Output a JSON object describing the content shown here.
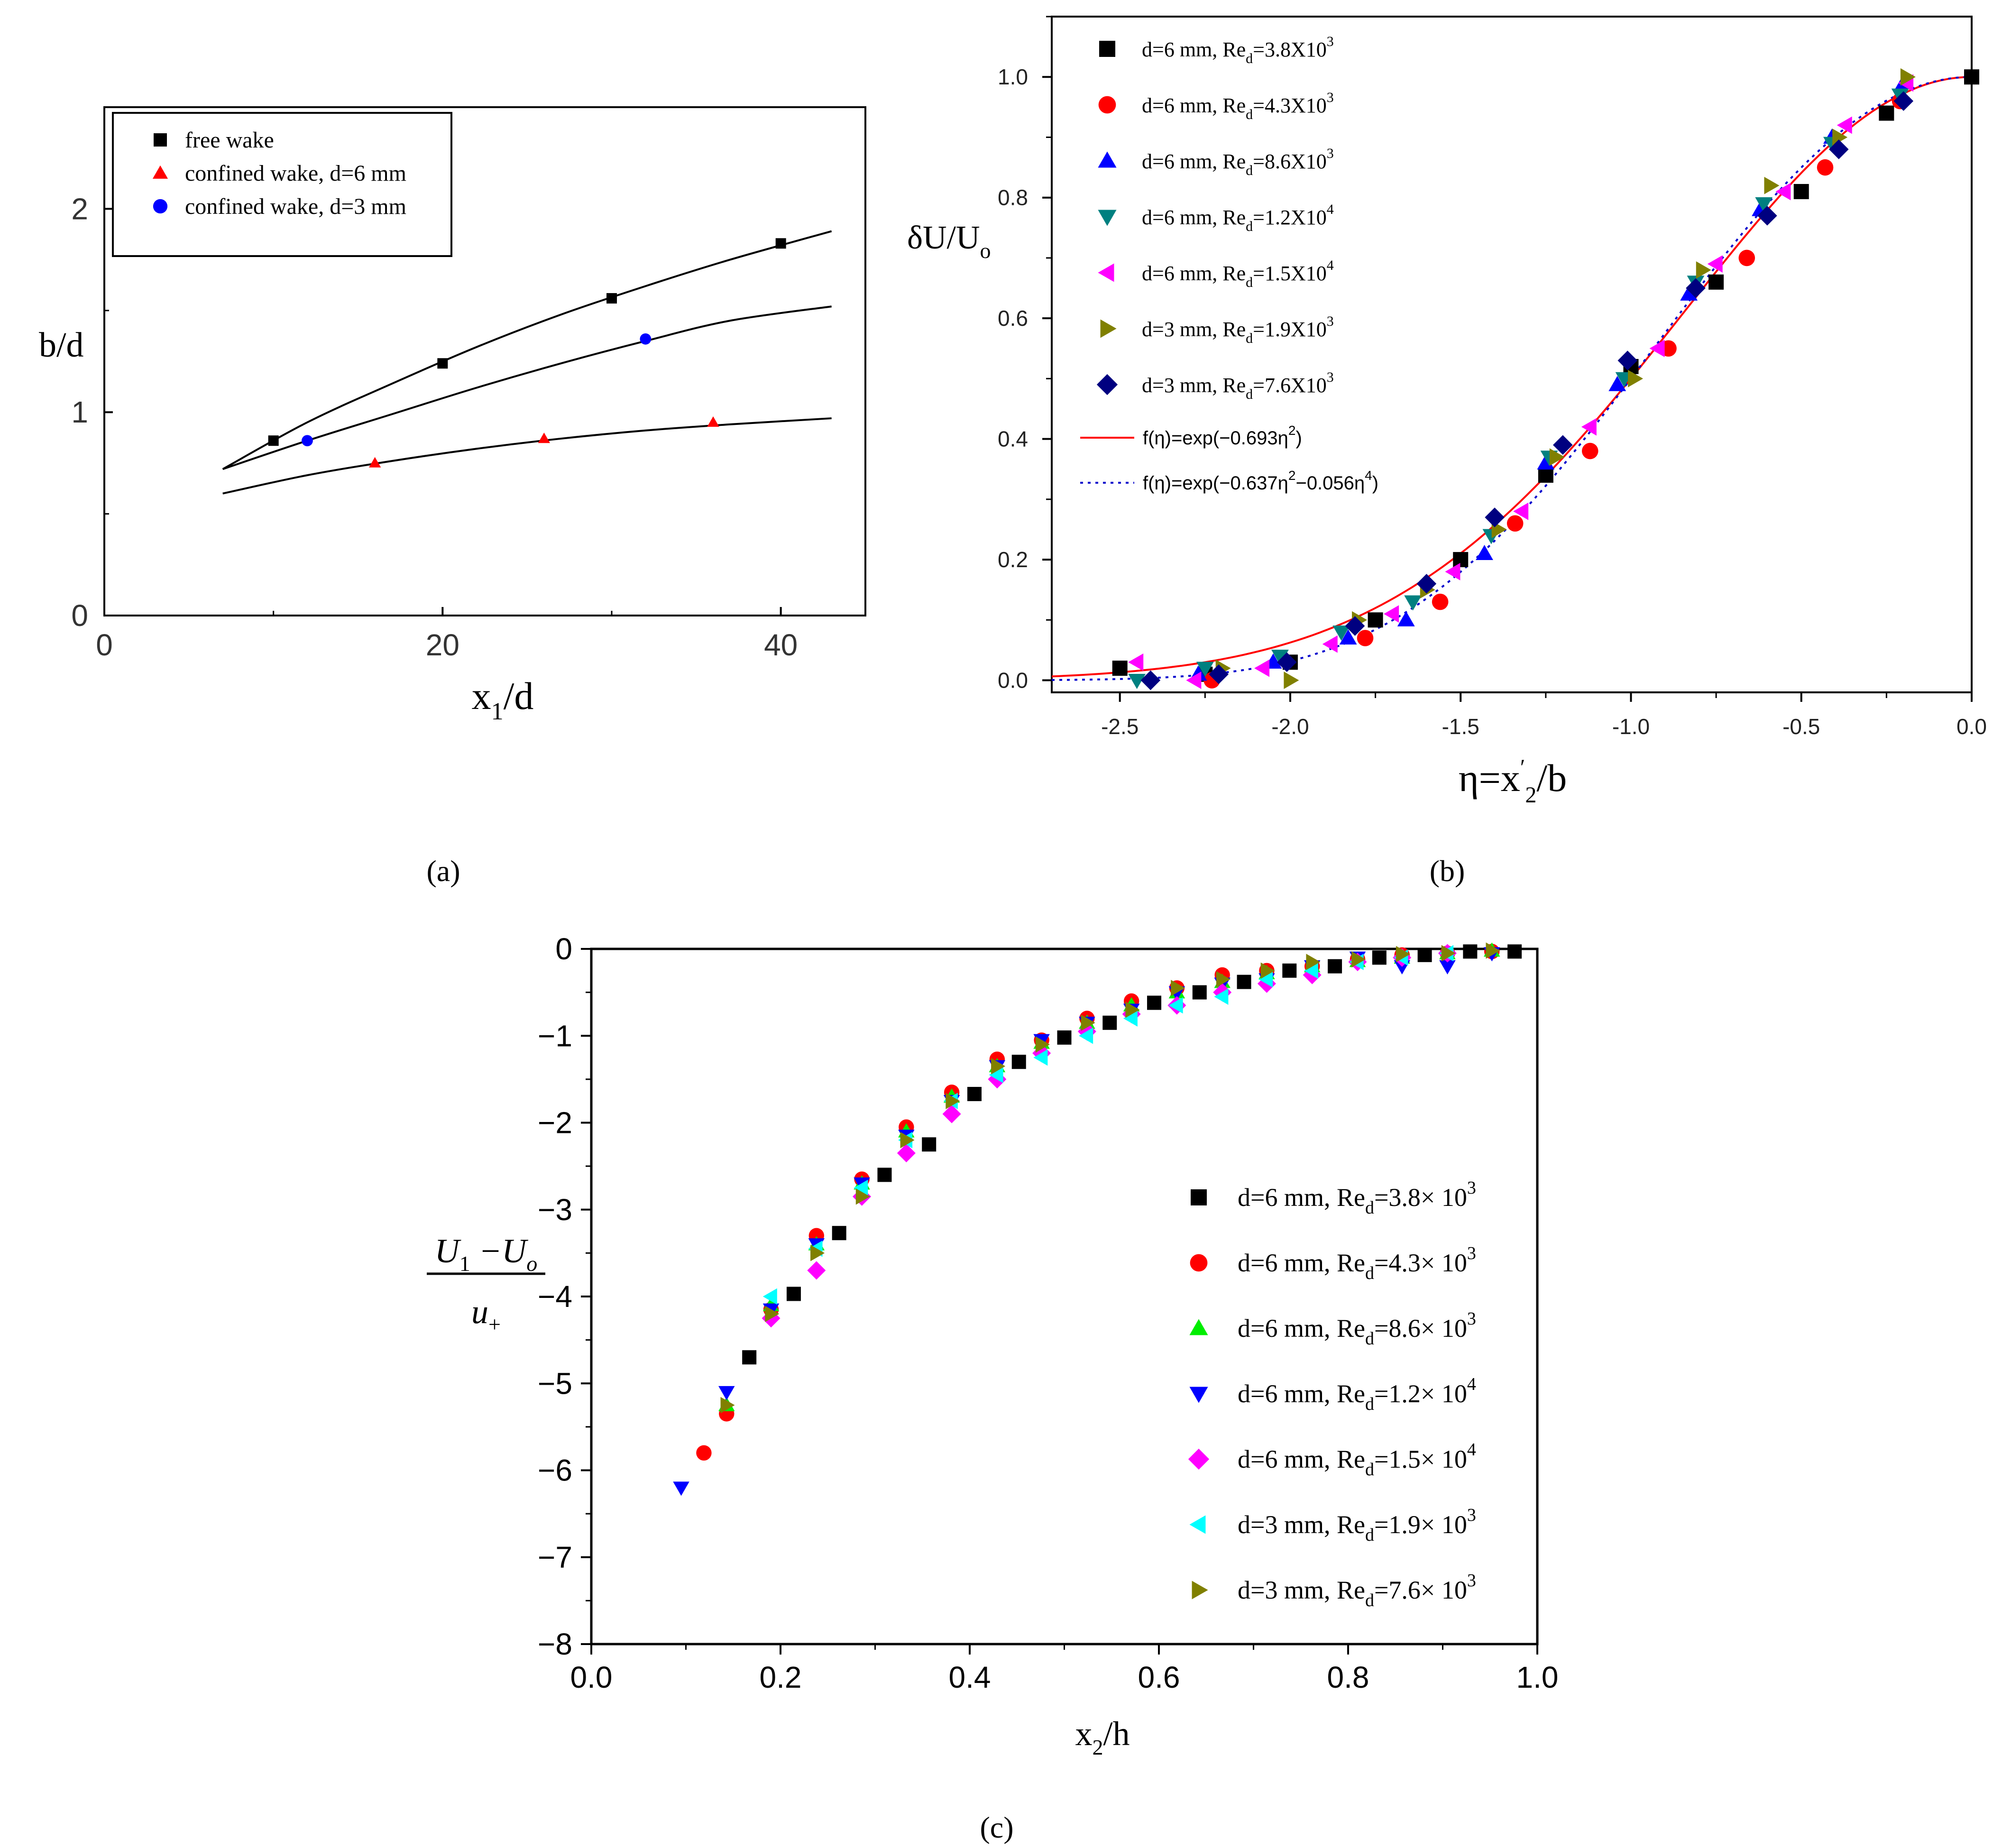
{
  "chart_data": [
    {
      "panel": "(a)",
      "type": "scatter",
      "xlabel_main": "x",
      "xlabel_sub": "1",
      "xlabel_tail": "/d",
      "ylabel": "b/d",
      "xlim": [
        0,
        45
      ],
      "ylim": [
        0,
        2.5
      ],
      "xticks": [
        "0",
        "20",
        "40"
      ],
      "yticks": [
        "0",
        "1",
        "2"
      ],
      "legend_position": "top-left",
      "series": [
        {
          "name": "free wake",
          "color": "#000000",
          "marker": "square",
          "x": [
            10,
            20,
            30,
            40
          ],
          "y": [
            0.86,
            1.24,
            1.56,
            1.83
          ],
          "curve_x": [
            7,
            12,
            17,
            22,
            27,
            32,
            37,
            43
          ],
          "curve_y": [
            0.72,
            0.95,
            1.14,
            1.32,
            1.48,
            1.62,
            1.75,
            1.89
          ]
        },
        {
          "name": "confined wake, d=6 mm",
          "color": "#ff0000",
          "marker": "triangle",
          "x": [
            16,
            26,
            36
          ],
          "y": [
            0.75,
            0.87,
            0.95
          ],
          "curve_x": [
            7,
            12,
            17,
            22,
            27,
            32,
            37,
            43
          ],
          "curve_y": [
            0.6,
            0.69,
            0.76,
            0.82,
            0.87,
            0.91,
            0.94,
            0.97
          ]
        },
        {
          "name": "confined wake, d=3 mm",
          "color": "#0000ff",
          "marker": "circle",
          "x": [
            12,
            32
          ],
          "y": [
            0.86,
            1.36
          ],
          "curve_x": [
            7,
            12,
            17,
            22,
            27,
            32,
            37,
            43
          ],
          "curve_y": [
            0.72,
            0.86,
            0.99,
            1.12,
            1.24,
            1.35,
            1.45,
            1.52
          ]
        }
      ]
    },
    {
      "panel": "(b)",
      "type": "scatter",
      "xlabel_pre": "η=x",
      "xlabel_prime": "′",
      "xlabel_sub": "2",
      "xlabel_tail": "/b",
      "ylabel_main": "δU/U",
      "ylabel_sub": "o",
      "xlim": [
        -2.7,
        0.0
      ],
      "ylim": [
        -0.02,
        1.1
      ],
      "xticks": [
        "-2.5",
        "-2.0",
        "-1.5",
        "-1.0",
        "-0.5",
        "0.0"
      ],
      "yticks": [
        "0.0",
        "0.2",
        "0.4",
        "0.6",
        "0.8",
        "1.0"
      ],
      "legend_position": "top-left",
      "series": [
        {
          "pre": "d=6 mm, Re",
          "sub": "d",
          "mid": "=3.8X10",
          "sup": "3",
          "color": "#000000",
          "marker": "square",
          "x": [
            -2.5,
            -2.25,
            -2.0,
            -1.75,
            -1.5,
            -1.25,
            -1.0,
            -0.75,
            -0.5,
            -0.25,
            0.0
          ],
          "y": [
            0.02,
            0.01,
            0.03,
            0.1,
            0.2,
            0.34,
            0.52,
            0.66,
            0.81,
            0.94,
            1.0
          ]
        },
        {
          "pre": "d=6 mm, Re",
          "sub": "d",
          "mid": "=4.3X10",
          "sup": "3",
          "color": "#ff0000",
          "marker": "circle",
          "x": [
            -2.23,
            -1.78,
            -1.56,
            -1.34,
            -1.12,
            -0.89,
            -0.66,
            -0.43,
            -0.21
          ],
          "y": [
            0.0,
            0.07,
            0.13,
            0.26,
            0.38,
            0.55,
            0.7,
            0.85,
            0.96
          ]
        },
        {
          "pre": "d=6 mm, Re",
          "sub": "d",
          "mid": "=8.6X10",
          "sup": "3",
          "color": "#0000ff",
          "marker": "triangle",
          "x": [
            -2.27,
            -2.05,
            -1.83,
            -1.66,
            -1.43,
            -1.25,
            -1.04,
            -0.83,
            -0.62,
            -0.41,
            -0.2
          ],
          "y": [
            0.01,
            0.03,
            0.07,
            0.1,
            0.21,
            0.36,
            0.49,
            0.64,
            0.78,
            0.9,
            0.99
          ]
        },
        {
          "pre": "d=6 mm, Re",
          "sub": "d",
          "mid": "=1.2X10",
          "sup": "4",
          "color": "#008080",
          "marker": "triangle-down",
          "x": [
            -2.45,
            -2.25,
            -2.03,
            -1.85,
            -1.64,
            -1.41,
            -1.24,
            -1.02,
            -0.81,
            -0.61,
            -0.41,
            -0.21
          ],
          "y": [
            0.0,
            0.02,
            0.04,
            0.08,
            0.13,
            0.24,
            0.37,
            0.5,
            0.66,
            0.79,
            0.89,
            0.97
          ]
        },
        {
          "pre": "d=6 mm, Re",
          "sub": "d",
          "mid": "=1.5X10",
          "sup": "4",
          "color": "#ff00ff",
          "marker": "triangle-left",
          "x": [
            -2.45,
            -2.28,
            -2.08,
            -1.88,
            -1.7,
            -1.52,
            -1.32,
            -1.12,
            -0.92,
            -0.75,
            -0.55,
            -0.37,
            -0.19
          ],
          "y": [
            0.03,
            0.0,
            0.02,
            0.06,
            0.11,
            0.18,
            0.28,
            0.42,
            0.55,
            0.69,
            0.81,
            0.92,
            0.99
          ]
        },
        {
          "pre": "d=3 mm, Re",
          "sub": "d",
          "mid": "=1.9X10",
          "sup": "3",
          "color": "#808000",
          "marker": "triangle-right",
          "x": [
            -2.2,
            -2.0,
            -1.8,
            -1.6,
            -1.39,
            -1.22,
            -0.99,
            -0.79,
            -0.59,
            -0.39,
            -0.19
          ],
          "y": [
            0.02,
            0.0,
            0.1,
            0.15,
            0.25,
            0.37,
            0.5,
            0.68,
            0.82,
            0.9,
            1.0
          ]
        },
        {
          "pre": "d=3 mm, Re",
          "sub": "d",
          "mid": "=7.6X10",
          "sup": "3",
          "color": "#000080",
          "marker": "diamond",
          "x": [
            -2.41,
            -2.21,
            -2.01,
            -1.81,
            -1.6,
            -1.4,
            -1.2,
            -1.01,
            -0.81,
            -0.6,
            -0.39,
            -0.2
          ],
          "y": [
            0.0,
            0.01,
            0.03,
            0.09,
            0.16,
            0.27,
            0.39,
            0.53,
            0.65,
            0.77,
            0.88,
            0.96
          ]
        }
      ],
      "fits": [
        {
          "label_pre": "f(η)=exp(−0.693η",
          "label_sup": "2",
          "label_post": ")",
          "color": "#ff0000",
          "style": "solid",
          "a": 0.693,
          "b": 0.0
        },
        {
          "label_pre": "f(η)=exp(−0.637η",
          "label_sup": "2",
          "label_mid": "−0.056η",
          "label_sup2": "4",
          "label_post": ")",
          "color": "#0000cc",
          "style": "dotted",
          "a": 0.637,
          "b": 0.056
        }
      ]
    },
    {
      "panel": "(c)",
      "type": "scatter",
      "xlabel_main": "x",
      "xlabel_sub": "2",
      "xlabel_tail": "/h",
      "ylabel_num_a": "U",
      "ylabel_num_a_sub": "1",
      "ylabel_num_b": " −U",
      "ylabel_num_b_sub": "o",
      "ylabel_den": "u",
      "ylabel_den_sub": "+",
      "xlim": [
        0,
        1
      ],
      "ylim": [
        -8,
        0
      ],
      "xticks": [
        "0.0",
        "0.2",
        "0.4",
        "0.6",
        "0.8",
        "1.0"
      ],
      "yticks": [
        "0",
        "−1",
        "−2",
        "−3",
        "−4",
        "−5",
        "−6",
        "−7",
        "−8"
      ],
      "legend_position": "lower-right",
      "series": [
        {
          "pre": "d=6 mm, Re",
          "sub": "d",
          "mid": "=3.8× 10",
          "sup": "3",
          "color": "#000000",
          "marker": "square",
          "x": [
            0.167,
            0.214,
            0.262,
            0.31,
            0.357,
            0.405,
            0.452,
            0.5,
            0.548,
            0.595,
            0.643,
            0.69,
            0.738,
            0.786,
            0.833,
            0.881,
            0.929,
            0.976
          ],
          "y": [
            -4.7,
            -3.97,
            -3.27,
            -2.6,
            -2.25,
            -1.67,
            -1.3,
            -1.02,
            -0.85,
            -0.62,
            -0.5,
            -0.38,
            -0.25,
            -0.2,
            -0.1,
            -0.07,
            -0.03,
            -0.03
          ]
        },
        {
          "pre": "d=6 mm, Re",
          "sub": "d",
          "mid": "=4.3× 10",
          "sup": "3",
          "color": "#ff0000",
          "marker": "circle",
          "x": [
            0.119,
            0.143,
            0.19,
            0.238,
            0.286,
            0.333,
            0.381,
            0.429,
            0.476,
            0.524,
            0.571,
            0.619,
            0.667,
            0.714,
            0.762,
            0.81,
            0.857,
            0.905,
            0.952
          ],
          "y": [
            -5.8,
            -5.35,
            -4.15,
            -3.3,
            -2.65,
            -2.05,
            -1.65,
            -1.27,
            -1.05,
            -0.8,
            -0.6,
            -0.45,
            -0.3,
            -0.25,
            -0.2,
            -0.12,
            -0.07,
            -0.05,
            -0.03
          ]
        },
        {
          "pre": "d=6 mm, Re",
          "sub": "d",
          "mid": "=8.6× 10",
          "sup": "3",
          "color": "#00ee00",
          "marker": "triangle",
          "x": [
            0.143,
            0.19,
            0.238,
            0.286,
            0.333,
            0.381,
            0.429,
            0.476,
            0.524,
            0.571,
            0.619,
            0.667,
            0.714,
            0.762,
            0.81,
            0.857,
            0.905,
            0.952
          ],
          "y": [
            -5.25,
            -4.1,
            -3.4,
            -2.7,
            -2.1,
            -1.7,
            -1.35,
            -1.08,
            -0.85,
            -0.65,
            -0.5,
            -0.38,
            -0.28,
            -0.2,
            -0.14,
            -0.1,
            -0.05,
            -0.02
          ]
        },
        {
          "pre": "d=6 mm, Re",
          "sub": "d",
          "mid": "=1.2× 10",
          "sup": "4",
          "color": "#0000ff",
          "marker": "triangle-down",
          "x": [
            0.095,
            0.143,
            0.19,
            0.238,
            0.286,
            0.333,
            0.381,
            0.429,
            0.476,
            0.524,
            0.571,
            0.619,
            0.667,
            0.714,
            0.762,
            0.81,
            0.857,
            0.905,
            0.952
          ],
          "y": [
            -6.2,
            -5.1,
            -4.15,
            -3.4,
            -2.7,
            -2.15,
            -1.75,
            -1.35,
            -1.05,
            -0.85,
            -0.7,
            -0.5,
            -0.4,
            -0.35,
            -0.2,
            -0.1,
            -0.2,
            -0.2,
            -0.05
          ]
        },
        {
          "pre": "d=6 mm, Re",
          "sub": "d",
          "mid": "=1.5× 10",
          "sup": "4",
          "color": "#ff00ff",
          "marker": "diamond",
          "x": [
            0.19,
            0.238,
            0.286,
            0.333,
            0.381,
            0.429,
            0.476,
            0.524,
            0.571,
            0.619,
            0.667,
            0.714,
            0.762,
            0.81,
            0.857,
            0.905
          ],
          "y": [
            -4.25,
            -3.7,
            -2.85,
            -2.35,
            -1.9,
            -1.5,
            -1.2,
            -0.95,
            -0.75,
            -0.65,
            -0.5,
            -0.4,
            -0.3,
            -0.15,
            -0.1,
            -0.05
          ]
        },
        {
          "pre": "d=3 mm, Re",
          "sub": "d",
          "mid": "=1.9× 10",
          "sup": "3",
          "color": "#00ffff",
          "marker": "triangle-left",
          "x": [
            0.19,
            0.238,
            0.286,
            0.333,
            0.381,
            0.429,
            0.476,
            0.524,
            0.571,
            0.619,
            0.667,
            0.714,
            0.762,
            0.81,
            0.857,
            0.905
          ],
          "y": [
            -4.0,
            -3.45,
            -2.75,
            -2.2,
            -1.75,
            -1.45,
            -1.25,
            -1.0,
            -0.8,
            -0.65,
            -0.55,
            -0.35,
            -0.25,
            -0.15,
            -0.1,
            -0.05
          ]
        },
        {
          "pre": "d=3 mm, Re",
          "sub": "d",
          "mid": "=7.6× 10",
          "sup": "3",
          "color": "#808000",
          "marker": "triangle-right",
          "x": [
            0.143,
            0.19,
            0.238,
            0.286,
            0.333,
            0.381,
            0.429,
            0.476,
            0.524,
            0.571,
            0.619,
            0.667,
            0.714,
            0.762,
            0.81,
            0.857,
            0.905,
            0.952
          ],
          "y": [
            -5.25,
            -4.2,
            -3.5,
            -2.85,
            -2.2,
            -1.75,
            -1.35,
            -1.1,
            -0.85,
            -0.7,
            -0.45,
            -0.35,
            -0.25,
            -0.15,
            -0.12,
            -0.06,
            -0.05,
            -0.02
          ]
        }
      ]
    }
  ]
}
